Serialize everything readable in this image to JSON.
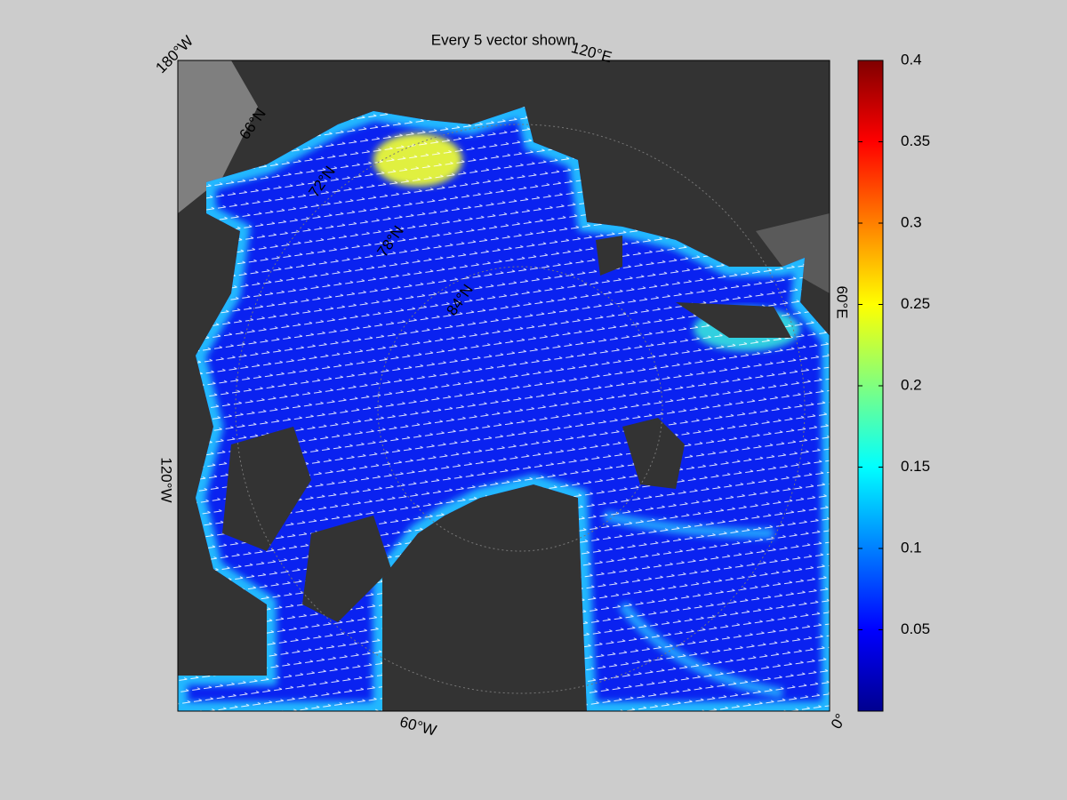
{
  "title": "Every 5 vector shown",
  "longitude_labels": [
    "180°W",
    "120°E",
    "60°E",
    "0°",
    "60°W",
    "120°W"
  ],
  "latitude_labels": [
    "66°N",
    "72°N",
    "78°N",
    "84°N"
  ],
  "colorbar": {
    "colormap": "jet",
    "lim": [
      0,
      0.4
    ],
    "ticks": [
      0.05,
      0.1,
      0.15,
      0.2,
      0.25,
      0.3,
      0.35,
      0.4
    ]
  }
}
